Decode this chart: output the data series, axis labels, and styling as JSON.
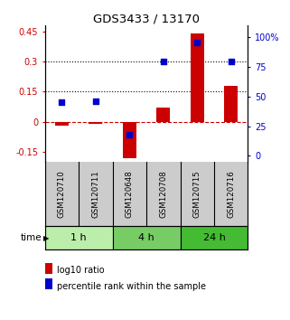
{
  "title": "GDS3433 / 13170",
  "samples": [
    "GSM120710",
    "GSM120711",
    "GSM120648",
    "GSM120708",
    "GSM120715",
    "GSM120716"
  ],
  "log10_ratio": [
    -0.02,
    -0.01,
    -0.18,
    0.07,
    0.44,
    0.18
  ],
  "percentile_rank": [
    45,
    46,
    18,
    80,
    96,
    80
  ],
  "time_groups": [
    {
      "label": "1 h",
      "indices": [
        0,
        1
      ],
      "color": "#bbeeaa"
    },
    {
      "label": "4 h",
      "indices": [
        2,
        3
      ],
      "color": "#77cc66"
    },
    {
      "label": "24 h",
      "indices": [
        4,
        5
      ],
      "color": "#44bb33"
    }
  ],
  "bar_color": "#cc0000",
  "dot_color": "#0000cc",
  "ylim_left": [
    -0.2,
    0.48
  ],
  "yticks_left": [
    -0.15,
    0,
    0.15,
    0.3,
    0.45
  ],
  "ylim_right": [
    -5,
    110
  ],
  "yticks_right": [
    0,
    25,
    50,
    75,
    100
  ],
  "ytick_labels_right": [
    "0",
    "25",
    "50",
    "75",
    "100%"
  ],
  "hlines": [
    0.15,
    0.3
  ],
  "zero_line_color": "#cc0000",
  "zero_line_style": "--",
  "hline_style": ":",
  "hline_color": "black",
  "legend_bar_label": "log10 ratio",
  "legend_dot_label": "percentile rank within the sample",
  "time_label": "time",
  "sample_bg_color": "#cccccc",
  "bar_width": 0.4
}
